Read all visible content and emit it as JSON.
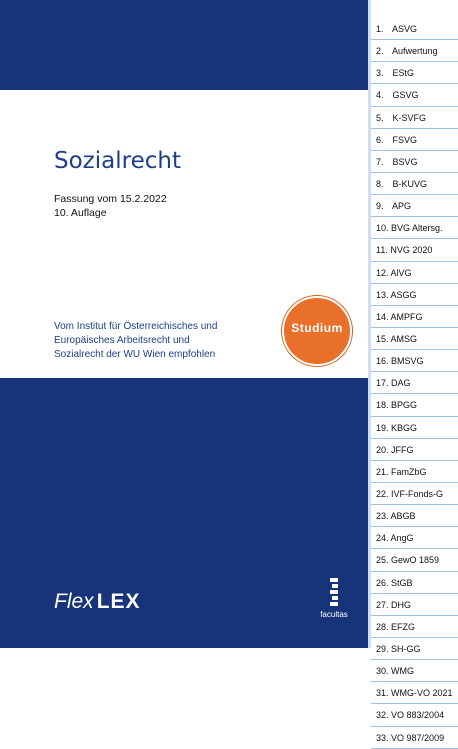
{
  "cover": {
    "title": "Sozialrecht",
    "edition_line1": "Fassung vom 15.2.2022",
    "edition_line2": "10. Auflage",
    "recommend_line1": "Vom Institut für Österreichisches und",
    "recommend_line2": "Europäisches Arbeitsrecht und",
    "recommend_line3": "Sozialrecht der WU Wien empfohlen",
    "badge": "Studium",
    "brand_flex": "Flex",
    "brand_lex": "LEX",
    "publisher": "facultas"
  },
  "colors": {
    "cover_blue": "#17347a",
    "title_blue": "#1d3f87",
    "badge_orange": "#e8702a",
    "tab_line": "#9ec3e3"
  },
  "tabs": [
    {
      "no": "1.",
      "label": "ASVG"
    },
    {
      "no": "2.",
      "label": "Aufwertung"
    },
    {
      "no": "3.",
      "label": "EStG"
    },
    {
      "no": "4.",
      "label": "GSVG"
    },
    {
      "no": "5.",
      "label": "K-SVFG"
    },
    {
      "no": "6.",
      "label": "FSVG"
    },
    {
      "no": "7.",
      "label": "BSVG"
    },
    {
      "no": "8.",
      "label": "B-KUVG"
    },
    {
      "no": "9.",
      "label": "APG"
    },
    {
      "no": "10.",
      "label": "BVG Altersg."
    },
    {
      "no": "11.",
      "label": "NVG 2020"
    },
    {
      "no": "12.",
      "label": "AlVG"
    },
    {
      "no": "13.",
      "label": "ASGG"
    },
    {
      "no": "14.",
      "label": "AMPFG"
    },
    {
      "no": "15.",
      "label": "AMSG"
    },
    {
      "no": "16.",
      "label": "BMSVG"
    },
    {
      "no": "17.",
      "label": "DAG"
    },
    {
      "no": "18.",
      "label": "BPGG"
    },
    {
      "no": "19.",
      "label": "KBGG"
    },
    {
      "no": "20.",
      "label": "JFFG"
    },
    {
      "no": "21.",
      "label": "FamZbG"
    },
    {
      "no": "22.",
      "label": "IVF-Fonds-G"
    },
    {
      "no": "23.",
      "label": "ABGB"
    },
    {
      "no": "24.",
      "label": "AngG"
    },
    {
      "no": "25.",
      "label": "GewO 1859"
    },
    {
      "no": "26.",
      "label": "StGB"
    },
    {
      "no": "27.",
      "label": "DHG"
    },
    {
      "no": "28.",
      "label": "EFZG"
    },
    {
      "no": "29.",
      "label": "SH-GG"
    },
    {
      "no": "30.",
      "label": "WMG"
    },
    {
      "no": "31.",
      "label": "WMG-VO 2021"
    },
    {
      "no": "32.",
      "label": "VO 883/2004"
    },
    {
      "no": "33.",
      "label": "VO 987/2009"
    }
  ]
}
